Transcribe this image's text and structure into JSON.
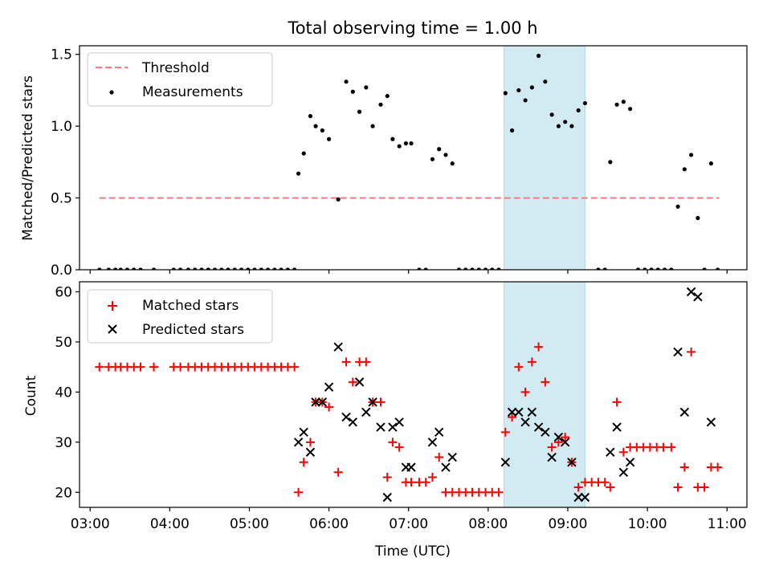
{
  "figure": {
    "title": "Total observing time = 1.00 h",
    "xlabel": "Time (UTC)"
  },
  "chart_data": [
    {
      "type": "scatter",
      "panel": "top",
      "ylabel": "Matched/Predicted stars",
      "xlim": [
        "02:52",
        "11:15"
      ],
      "ylim": [
        0,
        1.56
      ],
      "yticks": [
        "0.0",
        "0.5",
        "1.0",
        "1.5"
      ],
      "xticks": [
        "03:00",
        "04:00",
        "05:00",
        "06:00",
        "07:00",
        "08:00",
        "09:00",
        "10:00",
        "11:00"
      ],
      "legend": {
        "placement": "upper-left",
        "entries": [
          "Threshold",
          "Measurements"
        ]
      },
      "threshold": {
        "name": "Threshold",
        "y": 0.5,
        "x_start": "03:07",
        "x_end": "10:54",
        "color": "#ff7a7a",
        "style": "dashed"
      },
      "highlight_span": {
        "x_start": "08:12",
        "x_end": "09:13",
        "color": "#add8e6"
      },
      "series": [
        {
          "name": "Measurements",
          "color": "#000000",
          "points": [
            [
              "03:07",
              0
            ],
            [
              "03:14",
              0
            ],
            [
              "03:19",
              0
            ],
            [
              "03:23",
              0
            ],
            [
              "03:28",
              0
            ],
            [
              "03:33",
              0
            ],
            [
              "03:38",
              0
            ],
            [
              "03:48",
              0
            ],
            [
              "04:03",
              0
            ],
            [
              "04:08",
              0
            ],
            [
              "04:14",
              0
            ],
            [
              "04:19",
              0
            ],
            [
              "04:24",
              0
            ],
            [
              "04:29",
              0
            ],
            [
              "04:34",
              0
            ],
            [
              "04:39",
              0
            ],
            [
              "04:44",
              0
            ],
            [
              "04:49",
              0
            ],
            [
              "04:54",
              0
            ],
            [
              "04:59",
              0
            ],
            [
              "05:04",
              0
            ],
            [
              "05:09",
              0
            ],
            [
              "05:14",
              0
            ],
            [
              "05:19",
              0
            ],
            [
              "05:24",
              0
            ],
            [
              "05:29",
              0
            ],
            [
              "05:34",
              0
            ],
            [
              "05:37",
              0.67
            ],
            [
              "05:41",
              0.81
            ],
            [
              "05:46",
              1.07
            ],
            [
              "05:50",
              1.0
            ],
            [
              "05:55",
              0.97
            ],
            [
              "06:00",
              0.91
            ],
            [
              "06:07",
              0.49
            ],
            [
              "06:13",
              1.31
            ],
            [
              "06:18",
              1.24
            ],
            [
              "06:23",
              1.1
            ],
            [
              "06:28",
              1.27
            ],
            [
              "06:33",
              1.0
            ],
            [
              "06:39",
              1.15
            ],
            [
              "06:44",
              1.21
            ],
            [
              "06:48",
              0.91
            ],
            [
              "06:53",
              0.86
            ],
            [
              "06:58",
              0.88
            ],
            [
              "07:02",
              0.88
            ],
            [
              "07:08",
              0
            ],
            [
              "07:13",
              0
            ],
            [
              "07:18",
              0.77
            ],
            [
              "07:23",
              0.84
            ],
            [
              "07:28",
              0.8
            ],
            [
              "07:33",
              0.74
            ],
            [
              "07:38",
              0
            ],
            [
              "07:43",
              0
            ],
            [
              "07:48",
              0
            ],
            [
              "07:53",
              0
            ],
            [
              "07:58",
              0
            ],
            [
              "08:03",
              0
            ],
            [
              "08:08",
              0
            ],
            [
              "08:13",
              1.23
            ],
            [
              "08:18",
              0.97
            ],
            [
              "08:23",
              1.25
            ],
            [
              "08:28",
              1.18
            ],
            [
              "08:33",
              1.27
            ],
            [
              "08:38",
              1.49
            ],
            [
              "08:43",
              1.31
            ],
            [
              "08:48",
              1.08
            ],
            [
              "08:53",
              1.0
            ],
            [
              "08:58",
              1.03
            ],
            [
              "09:03",
              1.0
            ],
            [
              "09:08",
              1.11
            ],
            [
              "09:13",
              1.16
            ],
            [
              "09:23",
              0
            ],
            [
              "09:28",
              0
            ],
            [
              "09:32",
              0.75
            ],
            [
              "09:37",
              1.15
            ],
            [
              "09:42",
              1.17
            ],
            [
              "09:47",
              1.12
            ],
            [
              "09:53",
              0
            ],
            [
              "09:58",
              0
            ],
            [
              "10:03",
              0
            ],
            [
              "10:08",
              0
            ],
            [
              "10:13",
              0
            ],
            [
              "10:18",
              0
            ],
            [
              "10:23",
              0.44
            ],
            [
              "10:28",
              0.7
            ],
            [
              "10:33",
              0.8
            ],
            [
              "10:38",
              0.36
            ],
            [
              "10:43",
              0
            ],
            [
              "10:48",
              0.74
            ],
            [
              "10:53",
              0
            ]
          ]
        }
      ]
    },
    {
      "type": "scatter",
      "panel": "bottom",
      "ylabel": "Count",
      "xlabel": "Time (UTC)",
      "xlim": [
        "02:52",
        "11:15"
      ],
      "ylim": [
        17,
        62
      ],
      "yticks": [
        "20",
        "30",
        "40",
        "50",
        "60"
      ],
      "xticks": [
        "03:00",
        "04:00",
        "05:00",
        "06:00",
        "07:00",
        "08:00",
        "09:00",
        "10:00",
        "11:00"
      ],
      "legend": {
        "placement": "upper-left",
        "entries": [
          "Matched stars",
          "Predicted stars"
        ]
      },
      "highlight_span": {
        "x_start": "08:12",
        "x_end": "09:13",
        "color": "#add8e6"
      },
      "series": [
        {
          "name": "Matched stars",
          "marker": "+",
          "color": "#ff0000",
          "points": [
            [
              "03:07",
              45
            ],
            [
              "03:14",
              45
            ],
            [
              "03:19",
              45
            ],
            [
              "03:23",
              45
            ],
            [
              "03:28",
              45
            ],
            [
              "03:33",
              45
            ],
            [
              "03:38",
              45
            ],
            [
              "03:48",
              45
            ],
            [
              "04:03",
              45
            ],
            [
              "04:08",
              45
            ],
            [
              "04:14",
              45
            ],
            [
              "04:19",
              45
            ],
            [
              "04:24",
              45
            ],
            [
              "04:29",
              45
            ],
            [
              "04:34",
              45
            ],
            [
              "04:39",
              45
            ],
            [
              "04:44",
              45
            ],
            [
              "04:49",
              45
            ],
            [
              "04:54",
              45
            ],
            [
              "04:59",
              45
            ],
            [
              "05:04",
              45
            ],
            [
              "05:09",
              45
            ],
            [
              "05:14",
              45
            ],
            [
              "05:19",
              45
            ],
            [
              "05:24",
              45
            ],
            [
              "05:29",
              45
            ],
            [
              "05:34",
              45
            ],
            [
              "05:37",
              20
            ],
            [
              "05:41",
              26
            ],
            [
              "05:46",
              30
            ],
            [
              "05:50",
              38
            ],
            [
              "05:55",
              38
            ],
            [
              "06:00",
              37
            ],
            [
              "06:07",
              24
            ],
            [
              "06:13",
              46
            ],
            [
              "06:18",
              42
            ],
            [
              "06:23",
              46
            ],
            [
              "06:28",
              46
            ],
            [
              "06:33",
              38
            ],
            [
              "06:39",
              38
            ],
            [
              "06:44",
              23
            ],
            [
              "06:48",
              30
            ],
            [
              "06:53",
              29
            ],
            [
              "06:58",
              22
            ],
            [
              "07:02",
              22
            ],
            [
              "07:08",
              22
            ],
            [
              "07:13",
              22
            ],
            [
              "07:18",
              23
            ],
            [
              "07:23",
              27
            ],
            [
              "07:28",
              20
            ],
            [
              "07:33",
              20
            ],
            [
              "07:38",
              20
            ],
            [
              "07:43",
              20
            ],
            [
              "07:48",
              20
            ],
            [
              "07:53",
              20
            ],
            [
              "07:58",
              20
            ],
            [
              "08:03",
              20
            ],
            [
              "08:08",
              20
            ],
            [
              "08:13",
              32
            ],
            [
              "08:18",
              35
            ],
            [
              "08:23",
              45
            ],
            [
              "08:28",
              40
            ],
            [
              "08:33",
              46
            ],
            [
              "08:38",
              49
            ],
            [
              "08:43",
              42
            ],
            [
              "08:48",
              29
            ],
            [
              "08:53",
              30
            ],
            [
              "08:58",
              31
            ],
            [
              "09:03",
              26
            ],
            [
              "09:08",
              21
            ],
            [
              "09:13",
              22
            ],
            [
              "09:18",
              22
            ],
            [
              "09:23",
              22
            ],
            [
              "09:28",
              22
            ],
            [
              "09:32",
              21
            ],
            [
              "09:37",
              38
            ],
            [
              "09:42",
              28
            ],
            [
              "09:47",
              29
            ],
            [
              "09:52",
              29
            ],
            [
              "09:57",
              29
            ],
            [
              "10:02",
              29
            ],
            [
              "10:07",
              29
            ],
            [
              "10:12",
              29
            ],
            [
              "10:18",
              29
            ],
            [
              "10:23",
              21
            ],
            [
              "10:28",
              25
            ],
            [
              "10:33",
              48
            ],
            [
              "10:38",
              21
            ],
            [
              "10:43",
              21
            ],
            [
              "10:48",
              25
            ],
            [
              "10:53",
              25
            ]
          ]
        },
        {
          "name": "Predicted stars",
          "marker": "x",
          "color": "#000000",
          "points": [
            [
              "05:37",
              30
            ],
            [
              "05:41",
              32
            ],
            [
              "05:46",
              28
            ],
            [
              "05:50",
              38
            ],
            [
              "05:55",
              38
            ],
            [
              "06:00",
              41
            ],
            [
              "06:07",
              49
            ],
            [
              "06:13",
              35
            ],
            [
              "06:18",
              34
            ],
            [
              "06:23",
              42
            ],
            [
              "06:28",
              36
            ],
            [
              "06:33",
              38
            ],
            [
              "06:39",
              33
            ],
            [
              "06:44",
              19
            ],
            [
              "06:48",
              33
            ],
            [
              "06:53",
              34
            ],
            [
              "06:58",
              25
            ],
            [
              "07:02",
              25
            ],
            [
              "07:18",
              30
            ],
            [
              "07:23",
              32
            ],
            [
              "07:28",
              25
            ],
            [
              "07:33",
              27
            ],
            [
              "08:13",
              26
            ],
            [
              "08:18",
              36
            ],
            [
              "08:23",
              36
            ],
            [
              "08:28",
              34
            ],
            [
              "08:33",
              36
            ],
            [
              "08:38",
              33
            ],
            [
              "08:43",
              32
            ],
            [
              "08:48",
              27
            ],
            [
              "08:53",
              31
            ],
            [
              "08:58",
              30
            ],
            [
              "09:03",
              26
            ],
            [
              "09:08",
              19
            ],
            [
              "09:13",
              19
            ],
            [
              "09:32",
              28
            ],
            [
              "09:37",
              33
            ],
            [
              "09:42",
              24
            ],
            [
              "09:47",
              26
            ],
            [
              "10:23",
              48
            ],
            [
              "10:28",
              36
            ],
            [
              "10:33",
              60
            ],
            [
              "10:38",
              59
            ],
            [
              "10:48",
              34
            ]
          ]
        }
      ]
    }
  ]
}
